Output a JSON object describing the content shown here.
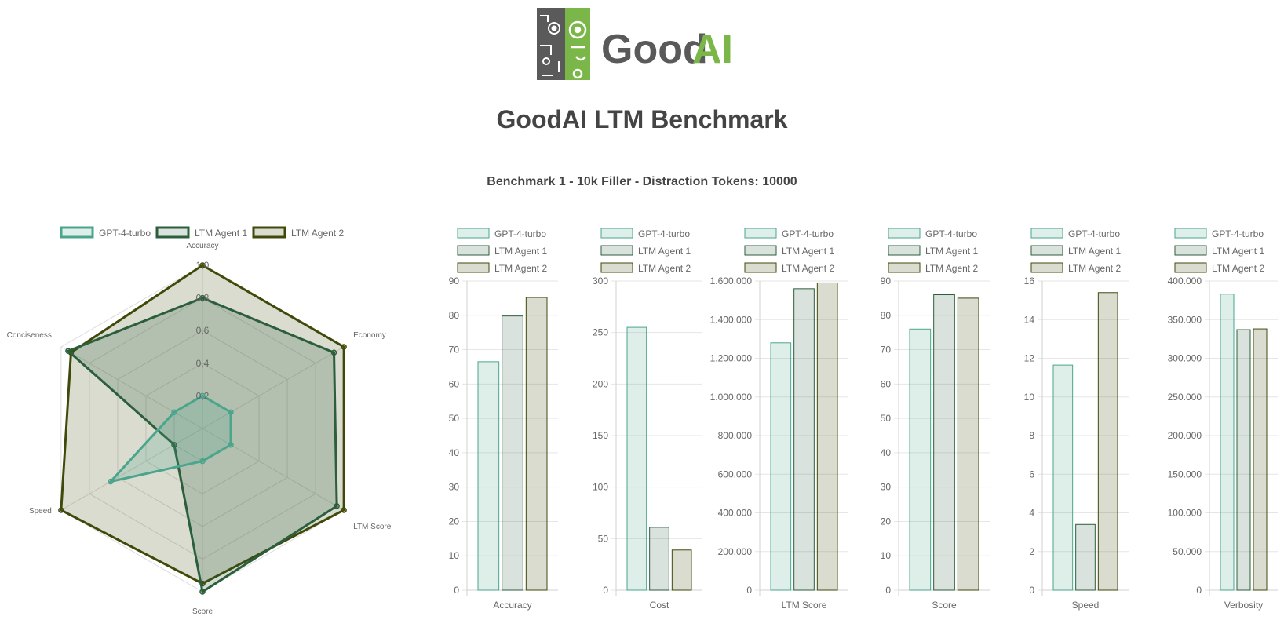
{
  "logo": {
    "text_dark": "Good",
    "text_accent": "AI",
    "dark_color": "#5a5a5a",
    "accent_color": "#7ab648"
  },
  "header": {
    "title": "GoodAI LTM Benchmark",
    "subtitle": "Benchmark 1 - 10k Filler - Distraction Tokens: 10000"
  },
  "series_styles": [
    {
      "name": "GPT-4-turbo",
      "stroke": "#4aa58c",
      "fill": "rgba(74,165,140,0.18)",
      "radar_fill": "rgba(74,165,140,0.22)"
    },
    {
      "name": "LTM Agent 1",
      "stroke": "#2b5e3b",
      "fill": "rgba(43,94,59,0.18)",
      "radar_fill": "rgba(43,94,59,0.22)"
    },
    {
      "name": "LTM Agent 2",
      "stroke": "#3f4a0a",
      "fill": "rgba(90,95,40,0.22)",
      "radar_fill": "rgba(90,95,40,0.22)"
    }
  ],
  "chart_data": [
    {
      "type": "radar",
      "title": "",
      "axes": [
        "Accuracy",
        "Economy",
        "LTM Score",
        "Score",
        "Speed",
        "Conciseness"
      ],
      "ticks": [
        "0",
        "0,2",
        "0,4",
        "0,6",
        "0,8",
        "1,0"
      ],
      "range": [
        0,
        1
      ],
      "legend": "top",
      "series": [
        {
          "name": "GPT-4-turbo",
          "values": [
            0.2,
            0.2,
            0.2,
            0.2,
            0.65,
            0.2
          ]
        },
        {
          "name": "LTM Agent 1",
          "values": [
            0.8,
            0.93,
            0.95,
            1.0,
            0.2,
            0.95
          ]
        },
        {
          "name": "LTM Agent 2",
          "values": [
            1.0,
            1.0,
            1.0,
            0.95,
            1.0,
            0.93
          ]
        }
      ]
    },
    {
      "type": "bar",
      "category": "Accuracy",
      "legend": "top",
      "ylim": [
        0,
        90
      ],
      "yticks": [
        "0",
        "10",
        "20",
        "30",
        "40",
        "50",
        "60",
        "70",
        "80",
        "90"
      ],
      "series": [
        {
          "name": "GPT-4-turbo",
          "value": 66.5
        },
        {
          "name": "LTM Agent 1",
          "value": 79.8
        },
        {
          "name": "LTM Agent 2",
          "value": 85.2
        }
      ]
    },
    {
      "type": "bar",
      "category": "Cost",
      "legend": "top",
      "ylim": [
        0,
        300
      ],
      "yticks": [
        "0",
        "50",
        "100",
        "150",
        "200",
        "250",
        "300"
      ],
      "series": [
        {
          "name": "GPT-4-turbo",
          "value": 255
        },
        {
          "name": "LTM Agent 1",
          "value": 61
        },
        {
          "name": "LTM Agent 2",
          "value": 39
        }
      ]
    },
    {
      "type": "bar",
      "category": "LTM Score",
      "legend": "top",
      "ylim": [
        0,
        1600000
      ],
      "yticks": [
        "0",
        "200.000",
        "400.000",
        "600.000",
        "800.000",
        "1.000.000",
        "1.200.000",
        "1.400.000",
        "1.600.000"
      ],
      "series": [
        {
          "name": "GPT-4-turbo",
          "value": 1280000
        },
        {
          "name": "LTM Agent 1",
          "value": 1560000
        },
        {
          "name": "LTM Agent 2",
          "value": 1590000
        }
      ]
    },
    {
      "type": "bar",
      "category": "Score",
      "legend": "top",
      "ylim": [
        0,
        90
      ],
      "yticks": [
        "0",
        "10",
        "20",
        "30",
        "40",
        "50",
        "60",
        "70",
        "80",
        "90"
      ],
      "series": [
        {
          "name": "GPT-4-turbo",
          "value": 76
        },
        {
          "name": "LTM Agent 1",
          "value": 86
        },
        {
          "name": "LTM Agent 2",
          "value": 85
        }
      ]
    },
    {
      "type": "bar",
      "category": "Speed",
      "legend": "top",
      "ylim": [
        0,
        16
      ],
      "yticks": [
        "0",
        "2",
        "4",
        "6",
        "8",
        "10",
        "12",
        "14",
        "16"
      ],
      "series": [
        {
          "name": "GPT-4-turbo",
          "value": 11.65
        },
        {
          "name": "LTM Agent 1",
          "value": 3.4
        },
        {
          "name": "LTM Agent 2",
          "value": 15.4
        }
      ]
    },
    {
      "type": "bar",
      "category": "Verbosity",
      "legend": "top",
      "ylim": [
        0,
        400000
      ],
      "yticks": [
        "0",
        "50.000",
        "100.000",
        "150.000",
        "200.000",
        "250.000",
        "300.000",
        "350.000",
        "400.000"
      ],
      "series": [
        {
          "name": "GPT-4-turbo",
          "value": 383000
        },
        {
          "name": "LTM Agent 1",
          "value": 337000
        },
        {
          "name": "LTM Agent 2",
          "value": 338000
        }
      ]
    }
  ]
}
